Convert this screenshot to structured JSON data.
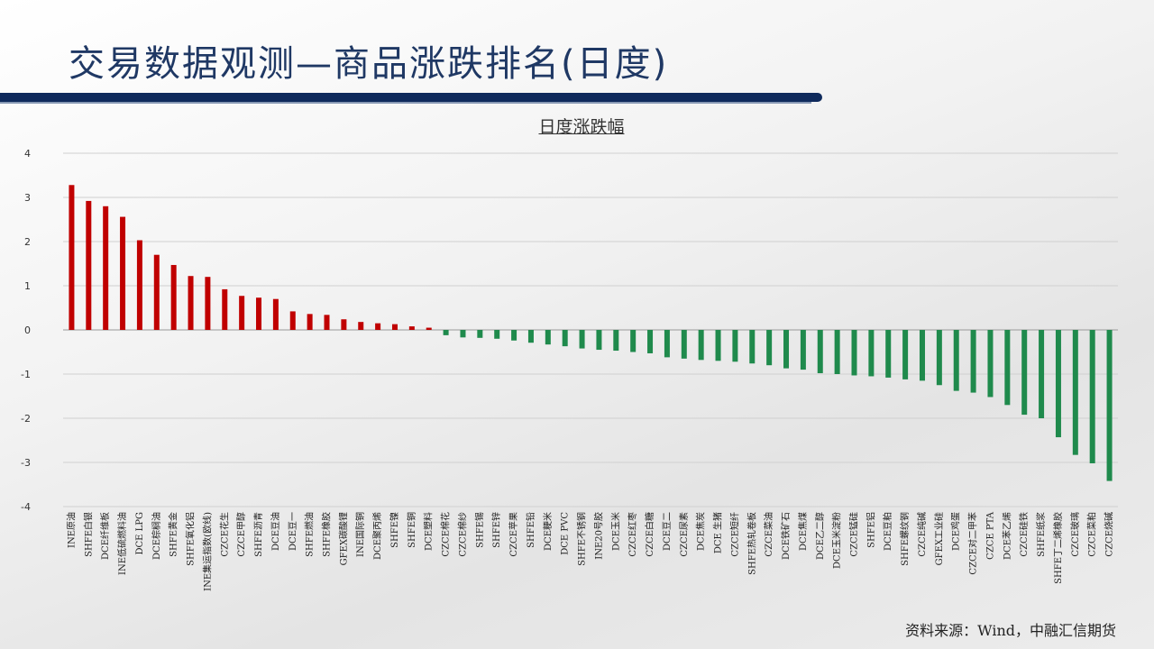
{
  "slide": {
    "title": "交易数据观测—商品涨跌排名(日度)",
    "source": "资料来源：Wind，中融汇信期货"
  },
  "colors": {
    "up": "#c00000",
    "down": "#1f8a4c",
    "title": "#1f3864"
  },
  "chart_data": {
    "type": "bar",
    "title": "日度涨跌幅",
    "xlabel": "",
    "ylabel": "",
    "ylim": [
      -4,
      4
    ],
    "yticks": [
      4,
      3,
      2,
      1,
      0,
      -1,
      -2,
      -3,
      -4
    ],
    "grid": true,
    "categories": [
      "INE原油",
      "SHFE白银",
      "DCE纤维板",
      "INE低硫燃料油",
      "DCE LPG",
      "DCE棕榈油",
      "SHFE黄金",
      "SHFE氧化铝",
      "INE集运指数(欧线)",
      "CZCE花生",
      "CZCE甲醇",
      "SHFE沥青",
      "DCE豆油",
      "DCE豆一",
      "SHFE燃油",
      "SHFE橡胶",
      "GFEX碳酸锂",
      "INE国际铜",
      "DCE聚丙烯",
      "SHFE镍",
      "SHFE铜",
      "DCE塑料",
      "CZCE棉花",
      "CZCE棉纱",
      "SHFE锡",
      "SHFE锌",
      "CZCE苹果",
      "SHFE铅",
      "DCE粳米",
      "DCE PVC",
      "SHFE不锈钢",
      "INE20号胶",
      "DCE玉米",
      "CZCE红枣",
      "CZCE白糖",
      "DCE豆二",
      "CZCE尿素",
      "DCE焦炭",
      "DCE 生猪",
      "CZCE短纤",
      "SHFE热轧卷板",
      "CZCE菜油",
      "DCE铁矿石",
      "DCE焦煤",
      "DCE乙二醇",
      "DCE玉米淀粉",
      "CZCE锰硅",
      "SHFE铝",
      "DCE豆粕",
      "SHFE螺纹钢",
      "CZCE纯碱",
      "GFEX工业硅",
      "DCE鸡蛋",
      "CZCE对二甲苯",
      "CZCE PTA",
      "DCE苯乙烯",
      "CZCE硅铁",
      "SHFE纸浆",
      "SHFE丁二烯橡胶",
      "CZCE玻璃",
      "CZCE菜粕",
      "CZCE烧碱"
    ],
    "values": [
      3.28,
      2.92,
      2.8,
      2.56,
      2.03,
      1.7,
      1.47,
      1.22,
      1.2,
      0.92,
      0.77,
      0.73,
      0.7,
      0.42,
      0.36,
      0.34,
      0.24,
      0.18,
      0.15,
      0.13,
      0.08,
      0.05,
      -0.12,
      -0.17,
      -0.18,
      -0.2,
      -0.24,
      -0.29,
      -0.33,
      -0.37,
      -0.42,
      -0.45,
      -0.47,
      -0.5,
      -0.53,
      -0.62,
      -0.65,
      -0.68,
      -0.7,
      -0.72,
      -0.76,
      -0.8,
      -0.87,
      -0.9,
      -0.98,
      -1.0,
      -1.03,
      -1.05,
      -1.08,
      -1.12,
      -1.15,
      -1.25,
      -1.38,
      -1.42,
      -1.52,
      -1.7,
      -1.92,
      -2.0,
      -2.43,
      -2.83,
      -3.02,
      -3.42
    ]
  }
}
